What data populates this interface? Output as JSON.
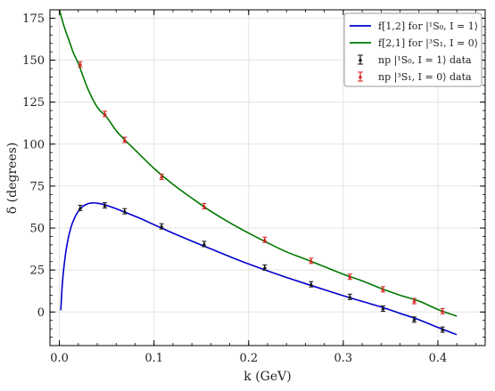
{
  "chart_data": {
    "type": "line",
    "xlabel": "k (GeV)",
    "ylabel": "δ (degrees)",
    "xlim": [
      -0.01,
      0.45
    ],
    "ylim": [
      -20,
      180
    ],
    "xticks": [
      0.0,
      0.1,
      0.2,
      0.3,
      0.4
    ],
    "xtick_labels": [
      "0.0",
      "0.1",
      "0.2",
      "0.3",
      "0.4"
    ],
    "yticks": [
      0,
      25,
      50,
      75,
      100,
      125,
      150,
      175
    ],
    "ytick_labels": [
      "0",
      "25",
      "50",
      "75",
      "100",
      "125",
      "150",
      "175"
    ],
    "grid": true,
    "legend_position": "top-right",
    "series": [
      {
        "name": "f[1,2] for |¹S₀, I = 1⟩",
        "kind": "line",
        "color": "#0000cc",
        "x": [
          0.0015,
          0.003,
          0.005,
          0.008,
          0.012,
          0.016,
          0.02,
          0.025,
          0.03,
          0.035,
          0.04,
          0.045,
          0.05,
          0.06,
          0.07,
          0.08,
          0.09,
          0.1,
          0.12,
          0.14,
          0.16,
          0.18,
          0.2,
          0.22,
          0.24,
          0.26,
          0.28,
          0.3,
          0.32,
          0.34,
          0.36,
          0.38,
          0.4,
          0.42
        ],
        "y": [
          1,
          16,
          28,
          40,
          50,
          56,
          60,
          63,
          64.5,
          65,
          64.8,
          64.3,
          63.5,
          61.5,
          59.3,
          57,
          54.6,
          52,
          47,
          42.2,
          37.6,
          33,
          28.6,
          24.5,
          20.6,
          16.9,
          13.3,
          9.7,
          6.3,
          3,
          -0.8,
          -4.6,
          -9.2,
          -13.5
        ]
      },
      {
        "name": "f[2,1] for |³S₁, I = 0⟩",
        "kind": "line",
        "color": "#007700",
        "x": [
          0.0,
          0.005,
          0.01,
          0.015,
          0.02,
          0.03,
          0.04,
          0.05,
          0.06,
          0.07,
          0.08,
          0.1,
          0.12,
          0.14,
          0.16,
          0.18,
          0.2,
          0.22,
          0.24,
          0.26,
          0.28,
          0.3,
          0.32,
          0.34,
          0.36,
          0.38,
          0.4,
          0.42
        ],
        "y": [
          180,
          170,
          162,
          154,
          148,
          133,
          122,
          116,
          108,
          102,
          96.5,
          85.5,
          76,
          67.8,
          60,
          53.2,
          47,
          41.2,
          35.8,
          31.5,
          27,
          22.5,
          18.5,
          14,
          10,
          6.5,
          1.5,
          -2.5
        ]
      },
      {
        "name": "np |¹S₀, I = 1⟩ data",
        "kind": "errorbar",
        "color": "#111111",
        "x": [
          0.022,
          0.048,
          0.069,
          0.108,
          0.153,
          0.217,
          0.266,
          0.307,
          0.342,
          0.375,
          0.405
        ],
        "y": [
          62,
          63.5,
          60,
          51,
          40.5,
          26.5,
          16.5,
          9,
          2,
          -4.5,
          -10.5
        ]
      },
      {
        "name": "np |³S₁, I = 0⟩ data",
        "kind": "errorbar",
        "color": "#d42020",
        "x": [
          0.022,
          0.048,
          0.069,
          0.108,
          0.153,
          0.217,
          0.266,
          0.307,
          0.342,
          0.375,
          0.405
        ],
        "y": [
          147.5,
          118,
          102.5,
          80.5,
          63,
          43,
          30.5,
          21,
          13.5,
          6.5,
          0.5
        ]
      }
    ]
  }
}
